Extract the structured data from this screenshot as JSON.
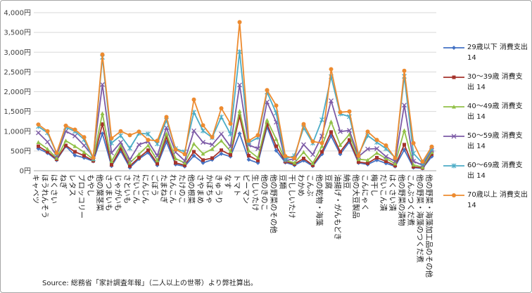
{
  "source_note": "Source: 総務省「家計調査年報」（二人以上の世帯）より弊社算出。",
  "chart_data": {
    "type": "line",
    "title": "",
    "xlabel": "",
    "ylabel": "",
    "ylim": [
      0,
      4000
    ],
    "yticks": [
      "0円",
      "500円",
      "1,000円",
      "1,500円",
      "2,000円",
      "2,500円",
      "3,000円",
      "3,500円",
      "4,000円"
    ],
    "grid": "horizontal",
    "legend_position": "right",
    "categories": [
      "キャベツ",
      "ほうれんそう",
      "はくさい",
      "ねぎ",
      "レタス",
      "ブロッコリー",
      "もやし",
      "他の葉茎菜",
      "さつまいも",
      "じゃがいも",
      "さといも",
      "だいこん",
      "にんじん",
      "ごぼう",
      "たまねぎ",
      "れんこん",
      "たけのこ",
      "他の根菜",
      "さやまめ",
      "かぼちゃ",
      "きゅうり",
      "なす",
      "トマト",
      "ピーマン",
      "生しいたけ",
      "他のきのこ",
      "他の野菜のその他",
      "豆類",
      "干ししいたけ",
      "わかめ",
      "こんぶ",
      "他の乾物・海藻",
      "豆腐",
      "油揚げ・がんもどき",
      "納豆",
      "他の大豆製品",
      "こんにゃく",
      "梅干し",
      "だいこん漬",
      "はくさい漬",
      "他の野菜の漬物",
      "こんぶつくだ煮",
      "他の野菜・海藻のつくだ煮",
      "他の野菜・海藻加工品のその他"
    ],
    "series": [
      {
        "name": "29歳以下 消費支出 14",
        "color": "#4472c4",
        "marker": "diamond",
        "values": [
          560,
          450,
          270,
          620,
          390,
          330,
          240,
          940,
          120,
          500,
          80,
          300,
          460,
          140,
          730,
          160,
          110,
          380,
          200,
          280,
          430,
          360,
          940,
          280,
          200,
          1110,
          510,
          210,
          140,
          260,
          120,
          420,
          880,
          420,
          730,
          200,
          160,
          270,
          190,
          110,
          530,
          80,
          60,
          360
        ]
      },
      {
        "name": "30〜39歳 消費支出 14",
        "color": "#a5332c",
        "marker": "square",
        "values": [
          620,
          480,
          290,
          640,
          480,
          380,
          250,
          1180,
          150,
          560,
          120,
          330,
          520,
          180,
          850,
          200,
          140,
          480,
          270,
          320,
          520,
          400,
          1380,
          380,
          260,
          1180,
          620,
          230,
          170,
          310,
          140,
          480,
          980,
          480,
          780,
          220,
          190,
          330,
          240,
          130,
          660,
          100,
          70,
          420
        ]
      },
      {
        "name": "40〜49歳 消費支出 14",
        "color": "#92c148",
        "marker": "triangle",
        "values": [
          720,
          550,
          320,
          760,
          620,
          470,
          290,
          1450,
          240,
          640,
          200,
          420,
          640,
          260,
          940,
          310,
          200,
          680,
          430,
          550,
          760,
          490,
          1510,
          510,
          330,
          1280,
          800,
          260,
          200,
          470,
          190,
          620,
          1240,
          650,
          920,
          290,
          270,
          450,
          310,
          180,
          1020,
          150,
          90,
          470
        ]
      },
      {
        "name": "50〜59歳 消費支出 14",
        "color": "#7c5aa6",
        "marker": "x",
        "values": [
          960,
          730,
          380,
          1000,
          880,
          640,
          360,
          2180,
          450,
          720,
          280,
          660,
          740,
          380,
          1090,
          470,
          250,
          1010,
          720,
          660,
          930,
          610,
          2170,
          650,
          560,
          1740,
          1230,
          260,
          300,
          660,
          410,
          880,
          1770,
          990,
          1020,
          360,
          550,
          560,
          360,
          240,
          1660,
          240,
          140,
          520
        ]
      },
      {
        "name": "60〜69歳 消費支出 14",
        "color": "#4bacc6",
        "marker": "star",
        "values": [
          1120,
          960,
          440,
          1100,
          1000,
          790,
          300,
          2870,
          700,
          890,
          570,
          950,
          930,
          680,
          1280,
          560,
          480,
          1480,
          1010,
          840,
          1360,
          930,
          3010,
          710,
          840,
          1990,
          1460,
          300,
          380,
          1090,
          700,
          1290,
          2380,
          1440,
          1370,
          410,
          890,
          720,
          560,
          330,
          2390,
          440,
          190,
          560
        ]
      },
      {
        "name": "70歳以上 消費支出 14",
        "color": "#ed8b30",
        "marker": "circle",
        "values": [
          1170,
          1000,
          450,
          1140,
          1040,
          850,
          330,
          2940,
          820,
          1000,
          900,
          990,
          780,
          760,
          1360,
          540,
          420,
          1800,
          1150,
          850,
          1580,
          1190,
          3760,
          760,
          900,
          2040,
          1650,
          370,
          320,
          1180,
          740,
          700,
          2570,
          1480,
          1500,
          380,
          990,
          780,
          640,
          320,
          2530,
          700,
          230,
          610
        ]
      }
    ]
  }
}
